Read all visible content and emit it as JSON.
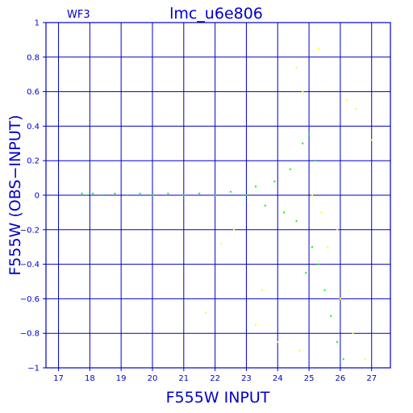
{
  "chart_data": {
    "type": "scatter",
    "title": "lmc_u6e806",
    "subtitle": "WF3",
    "xlabel": "F555W  INPUT",
    "ylabel": "F555W  (OBS−INPUT)",
    "xlim": [
      16.6,
      27.6
    ],
    "ylim": [
      -1,
      1
    ],
    "x_ticks": [
      "17",
      "18",
      "19",
      "20",
      "21",
      "22",
      "23",
      "24",
      "25",
      "26",
      "27"
    ],
    "y_ticks": [
      "1",
      "0.8",
      "0.6",
      "0.4",
      "0.2",
      "0",
      "−0.2",
      "−0.4",
      "−0.6",
      "−0.8",
      "−1"
    ],
    "grid": true,
    "colors": {
      "axis": "#0000cc",
      "grid": "#0000cc",
      "text": "#0000cc",
      "green_points": "#00ff00",
      "yellow_points": "#ffff00"
    },
    "series": [
      {
        "color": "#00ff00",
        "points": [
          [
            17.75,
            0.01
          ],
          [
            17.9,
            0.0
          ],
          [
            18.1,
            0.01
          ],
          [
            18.4,
            0.0
          ],
          [
            18.8,
            0.01
          ],
          [
            19.2,
            0.0
          ],
          [
            19.6,
            0.01
          ],
          [
            20.0,
            0.0
          ],
          [
            20.5,
            0.01
          ],
          [
            21.0,
            0.0
          ],
          [
            21.5,
            0.01
          ],
          [
            22.0,
            0.0
          ],
          [
            22.5,
            0.02
          ],
          [
            23.0,
            0.0
          ],
          [
            23.3,
            0.05
          ],
          [
            23.6,
            -0.06
          ],
          [
            23.9,
            0.08
          ],
          [
            24.2,
            -0.1
          ],
          [
            24.4,
            0.15
          ],
          [
            24.6,
            -0.15
          ],
          [
            24.8,
            0.3
          ],
          [
            25.0,
            0.35
          ],
          [
            25.1,
            -0.3
          ],
          [
            25.3,
            -0.4
          ],
          [
            25.5,
            -0.55
          ],
          [
            25.7,
            -0.7
          ],
          [
            25.9,
            -0.85
          ],
          [
            26.1,
            -0.95
          ],
          [
            24.9,
            -0.45
          ],
          [
            25.2,
            0.2
          ]
        ]
      },
      {
        "color": "#ffff00",
        "points": [
          [
            24.6,
            0.74
          ],
          [
            24.8,
            0.6
          ],
          [
            25.3,
            0.85
          ],
          [
            26.2,
            0.55
          ],
          [
            26.5,
            0.5
          ],
          [
            27.0,
            0.32
          ],
          [
            25.6,
            -0.3
          ],
          [
            26.0,
            -0.6
          ],
          [
            26.4,
            -0.8
          ],
          [
            26.8,
            -0.95
          ],
          [
            25.9,
            -0.2
          ],
          [
            23.5,
            -0.55
          ],
          [
            22.6,
            -0.2
          ],
          [
            21.7,
            -0.68
          ],
          [
            22.2,
            -0.28
          ],
          [
            23.3,
            -0.75
          ],
          [
            24.0,
            -0.85
          ],
          [
            24.7,
            -0.9
          ],
          [
            25.1,
            0.0
          ],
          [
            25.4,
            -0.1
          ]
        ]
      }
    ]
  }
}
